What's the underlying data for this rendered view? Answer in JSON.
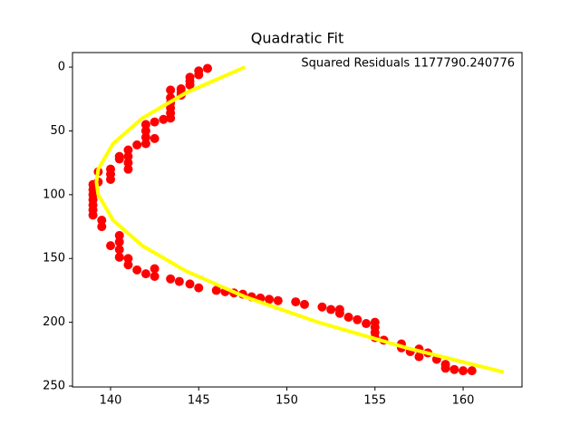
{
  "chart_data": {
    "type": "scatter",
    "title": "Quadratic Fit",
    "annotation": "Squared Residuals 1177790.240776",
    "xlim": [
      137.84,
      163.34
    ],
    "ylim": [
      250.7,
      -11.4
    ],
    "xticks": [
      140,
      145,
      150,
      155,
      160
    ],
    "yticks": [
      0,
      50,
      100,
      150,
      200,
      250
    ],
    "series": [
      {
        "type": "scatter",
        "color": "#ff0000",
        "x": [
          145.5,
          145.0,
          145.0,
          144.5,
          144.5,
          144.5,
          144.0,
          144.0,
          144.0,
          143.4,
          143.4,
          143.4,
          143.4,
          143.4,
          143.4,
          143.0,
          142.5,
          142.5,
          142.0,
          142.0,
          142.0,
          142.0,
          141.5,
          141.0,
          141.0,
          141.0,
          141.0,
          140.5,
          140.5,
          140.0,
          140.0,
          140.0,
          139.3,
          139.3,
          139.0,
          139.0,
          139.0,
          139.0,
          139.0,
          139.0,
          139.0,
          139.5,
          139.5,
          140.0,
          140.5,
          140.5,
          140.5,
          140.5,
          141.0,
          141.0,
          141.5,
          142.0,
          142.5,
          142.5,
          143.4,
          143.9,
          144.5,
          145.0,
          146.0,
          146.5,
          147.0,
          147.5,
          148.0,
          148.5,
          149.0,
          149.5,
          150.5,
          151.0,
          152.0,
          152.5,
          153.0,
          153.0,
          153.5,
          154.0,
          154.5,
          155.0,
          155.0,
          155.0,
          155.0,
          155.5,
          156.5,
          156.5,
          157.0,
          157.5,
          157.5,
          158.0,
          158.5,
          159.0,
          159.0,
          159.5,
          160.0,
          160.5
        ],
        "values": [
          1,
          3,
          6,
          8,
          11,
          14,
          17,
          20,
          22,
          18,
          24,
          28,
          32,
          36,
          40,
          41,
          43,
          56,
          45,
          50,
          55,
          60,
          61,
          65,
          70,
          75,
          80,
          70,
          72,
          80,
          84,
          88,
          82,
          90,
          92,
          96,
          100,
          104,
          108,
          112,
          116,
          120,
          125,
          140,
          132,
          137,
          143,
          149,
          150,
          155,
          159,
          162,
          164,
          158,
          166,
          168,
          170,
          173,
          175,
          176,
          177,
          178,
          180,
          181,
          182,
          183,
          184,
          186,
          188,
          190,
          190,
          193,
          196,
          198,
          201,
          200,
          204,
          208,
          212,
          214,
          217,
          220,
          223,
          221,
          227,
          224,
          229,
          233,
          236,
          237,
          238,
          238
        ]
      },
      {
        "type": "line",
        "color": "#ffff00",
        "x": [
          147.62,
          144.3,
          141.8,
          140.14,
          139.3,
          139.2,
          139.3,
          140.14,
          141.8,
          144.3,
          147.62,
          151.78,
          156.78,
          162.29
        ],
        "values": [
          0,
          20,
          40,
          60,
          80,
          90,
          100,
          120,
          140,
          160,
          180,
          200,
          220,
          239
        ]
      }
    ]
  }
}
